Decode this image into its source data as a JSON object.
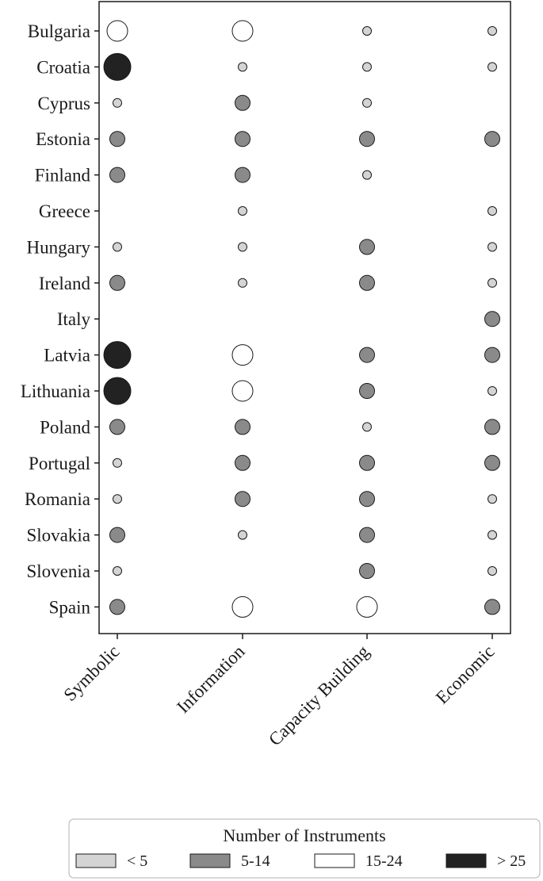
{
  "chart_data": {
    "type": "scatter",
    "title": "",
    "xlabel": "",
    "ylabel": "",
    "categories_x": [
      "Symbolic",
      "Information",
      "Capacity Building",
      "Economic"
    ],
    "categories_y": [
      "Bulgaria",
      "Croatia",
      "Cyprus",
      "Estonia",
      "Finland",
      "Greece",
      "Hungary",
      "Ireland",
      "Italy",
      "Latvia",
      "Lithuania",
      "Poland",
      "Portugal",
      "Romania",
      "Slovakia",
      "Slovenia",
      "Spain"
    ],
    "legend": {
      "title": "Number of Instruments",
      "placement": "bottom",
      "items": [
        {
          "key": "lt5",
          "label": "< 5",
          "color": "#d4d4d4"
        },
        {
          "key": "5to14",
          "label": "5-14",
          "color": "#8a8a8a"
        },
        {
          "key": "15to24",
          "label": "15-24",
          "color": "#ffffff"
        },
        {
          "key": "gt25",
          "label": "> 25",
          "color": "#222222"
        }
      ]
    },
    "data": [
      {
        "country": "Bulgaria",
        "values": [
          "15to24",
          "15to24",
          "lt5",
          "lt5"
        ]
      },
      {
        "country": "Croatia",
        "values": [
          "gt25",
          "lt5",
          "lt5",
          "lt5"
        ]
      },
      {
        "country": "Cyprus",
        "values": [
          "lt5",
          "5to14",
          "lt5",
          null
        ]
      },
      {
        "country": "Estonia",
        "values": [
          "5to14",
          "5to14",
          "5to14",
          "5to14"
        ]
      },
      {
        "country": "Finland",
        "values": [
          "5to14",
          "5to14",
          "lt5",
          null
        ]
      },
      {
        "country": "Greece",
        "values": [
          null,
          "lt5",
          null,
          "lt5"
        ]
      },
      {
        "country": "Hungary",
        "values": [
          "lt5",
          "lt5",
          "5to14",
          "lt5"
        ]
      },
      {
        "country": "Ireland",
        "values": [
          "5to14",
          "lt5",
          "5to14",
          "lt5"
        ]
      },
      {
        "country": "Italy",
        "values": [
          null,
          null,
          null,
          "5to14"
        ]
      },
      {
        "country": "Latvia",
        "values": [
          "gt25",
          "15to24",
          "5to14",
          "5to14"
        ]
      },
      {
        "country": "Lithuania",
        "values": [
          "gt25",
          "15to24",
          "5to14",
          "lt5"
        ]
      },
      {
        "country": "Poland",
        "values": [
          "5to14",
          "5to14",
          "lt5",
          "5to14"
        ]
      },
      {
        "country": "Portugal",
        "values": [
          "lt5",
          "5to14",
          "5to14",
          "5to14"
        ]
      },
      {
        "country": "Romania",
        "values": [
          "lt5",
          "5to14",
          "5to14",
          "lt5"
        ]
      },
      {
        "country": "Slovakia",
        "values": [
          "5to14",
          "lt5",
          "5to14",
          "lt5"
        ]
      },
      {
        "country": "Slovenia",
        "values": [
          "lt5",
          null,
          "5to14",
          "lt5"
        ]
      },
      {
        "country": "Spain",
        "values": [
          "5to14",
          "15to24",
          "15to24",
          "5to14"
        ]
      }
    ]
  }
}
